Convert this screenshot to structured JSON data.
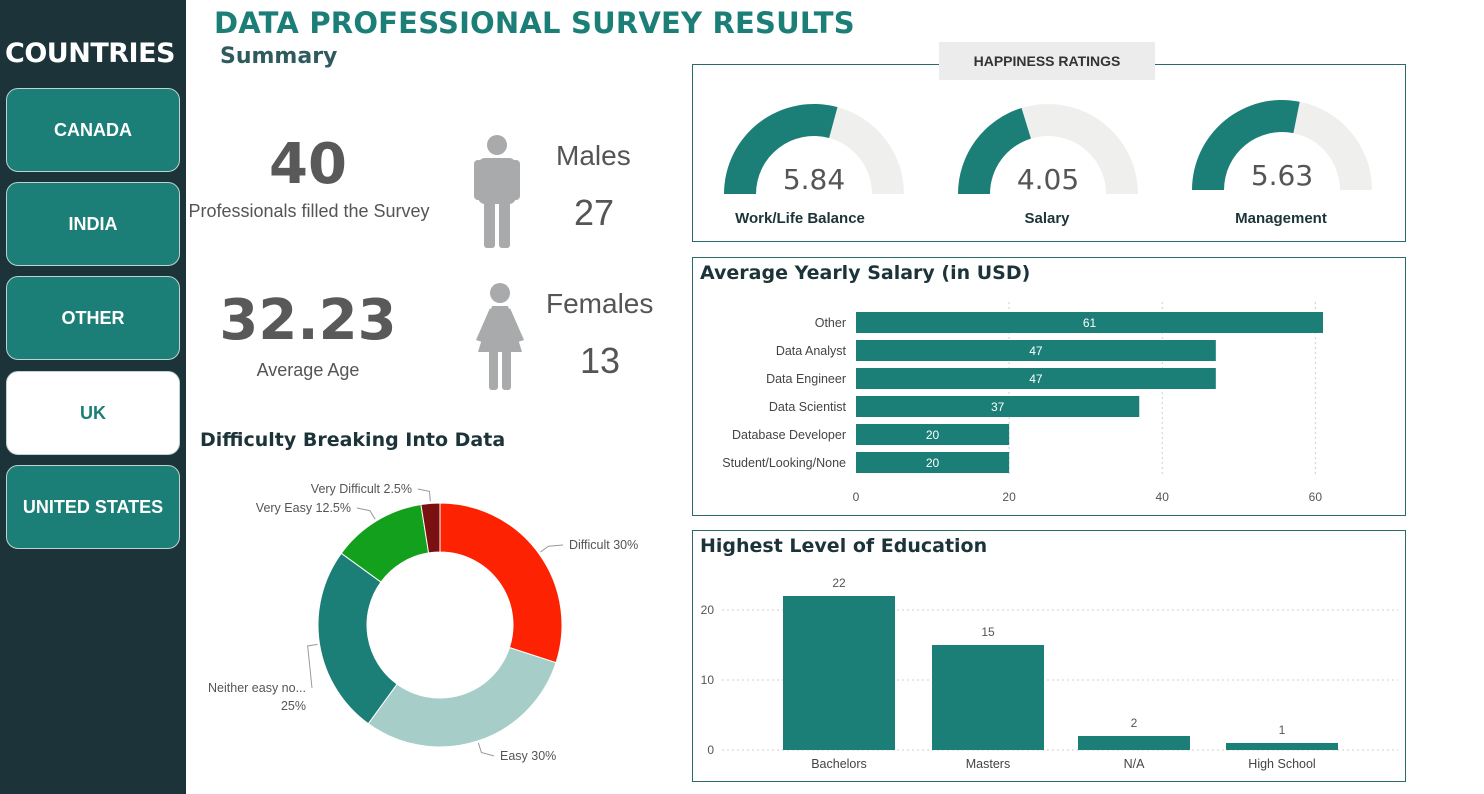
{
  "sidebar": {
    "title": "COUNTRIES",
    "countries": [
      {
        "label": "CANADA",
        "selected": false
      },
      {
        "label": "INDIA",
        "selected": false
      },
      {
        "label": "OTHER",
        "selected": false
      },
      {
        "label": "UK",
        "selected": true
      },
      {
        "label": "UNITED STATES",
        "selected": false
      }
    ]
  },
  "header": {
    "title": "DATA PROFESSIONAL SURVEY RESULTS",
    "summary": "Summary"
  },
  "kpis": {
    "count": "40",
    "count_label": "Professionals filled the Survey",
    "avg_age": "32.23",
    "avg_age_label": "Average Age",
    "males_label": "Males",
    "males": "27",
    "females_label": "Females",
    "females": "13"
  },
  "colors": {
    "teal": "#1b7e77",
    "sidebar": "#1c3439",
    "gauge_track": "#efefee",
    "difficult": "#fd2202",
    "easy": "#a6cdc8",
    "neither": "#1b7e77",
    "very_easy": "#13a01d",
    "very_difficult": "#7a1010",
    "person_icon": "#a8aaab"
  },
  "happiness": {
    "title": "HAPPINESS RATINGS",
    "max": 10,
    "gauges": [
      {
        "label": "Work/Life Balance",
        "value": 5.84,
        "display": "5.84"
      },
      {
        "label": "Salary",
        "value": 4.05,
        "display": "4.05"
      },
      {
        "label": "Management",
        "value": 5.63,
        "display": "5.63"
      }
    ]
  },
  "salary": {
    "title": "Average Yearly Salary (in USD)"
  },
  "education": {
    "title": "Highest Level of Education"
  },
  "difficulty": {
    "title": "Difficulty Breaking Into Data"
  },
  "chart_data": [
    {
      "type": "bar",
      "orientation": "horizontal",
      "title": "Average Yearly Salary (in USD)",
      "categories": [
        "Other",
        "Data Analyst",
        "Data Engineer",
        "Data Scientist",
        "Database Developer",
        "Student/Looking/None"
      ],
      "values": [
        61,
        47,
        47,
        37,
        20,
        20
      ],
      "xlim": [
        0,
        65
      ],
      "xticks": [
        0,
        20,
        40,
        60
      ],
      "grid": true
    },
    {
      "type": "bar",
      "orientation": "vertical",
      "title": "Highest Level of Education",
      "categories": [
        "Bachelors",
        "Masters",
        "N/A",
        "High School"
      ],
      "values": [
        22,
        15,
        2,
        1
      ],
      "ylim": [
        0,
        24
      ],
      "yticks": [
        0,
        10,
        20
      ],
      "grid": true
    },
    {
      "type": "pie",
      "donut": true,
      "title": "Difficulty Breaking Into Data",
      "slices": [
        {
          "label": "Difficult",
          "value": 30,
          "display": "Difficult 30%"
        },
        {
          "label": "Easy",
          "value": 30,
          "display": "Easy 30%"
        },
        {
          "label": "Neither easy no...",
          "value": 25,
          "display": "Neither easy no...",
          "display2": "25%"
        },
        {
          "label": "Very Easy",
          "value": 12.5,
          "display": "Very Easy 12.5%"
        },
        {
          "label": "Very Difficult",
          "value": 2.5,
          "display": "Very Difficult 2.5%"
        }
      ]
    }
  ]
}
